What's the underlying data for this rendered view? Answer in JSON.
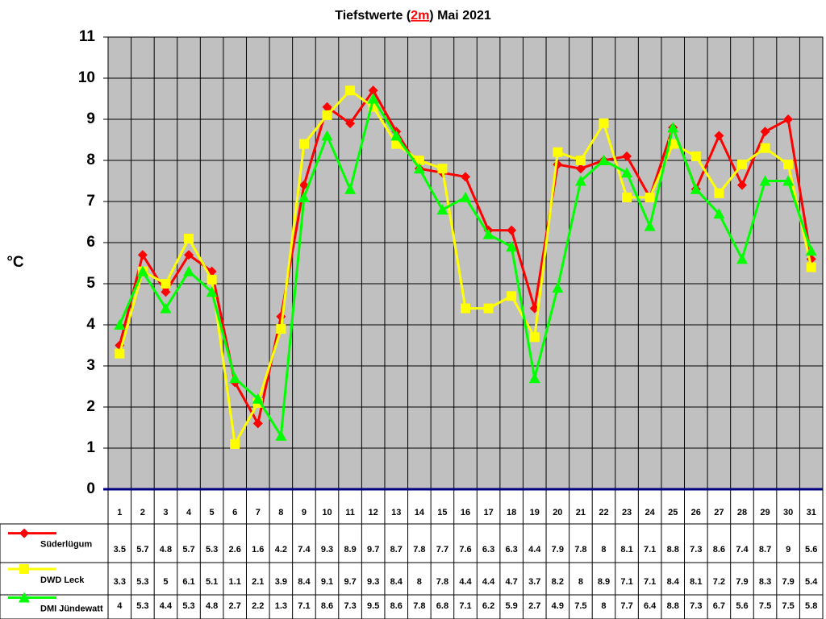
{
  "chart_data": {
    "type": "line",
    "title": [
      "Tiefstwerte (",
      "2m",
      ") Mai 2021"
    ],
    "y_label": "°C",
    "categories": [
      "1",
      "2",
      "3",
      "4",
      "5",
      "6",
      "7",
      "8",
      "9",
      "10",
      "11",
      "12",
      "13",
      "14",
      "15",
      "16",
      "17",
      "18",
      "19",
      "20",
      "21",
      "22",
      "23",
      "24",
      "25",
      "26",
      "27",
      "28",
      "29",
      "30",
      "31"
    ],
    "ylim": [
      0,
      11
    ],
    "yticks": [
      0,
      1,
      2,
      3,
      4,
      5,
      6,
      7,
      8,
      9,
      10,
      11
    ],
    "grid": true,
    "series": [
      {
        "name": "Süderlügum",
        "color": "#ff0000",
        "marker": "diamond",
        "values": [
          3.5,
          5.7,
          4.8,
          5.7,
          5.3,
          2.6,
          1.6,
          4.2,
          7.4,
          9.3,
          8.9,
          9.7,
          8.7,
          7.8,
          7.7,
          7.6,
          6.3,
          6.3,
          4.4,
          7.9,
          7.8,
          8,
          8.1,
          7.1,
          8.8,
          7.3,
          8.6,
          7.4,
          8.7,
          9,
          5.6
        ]
      },
      {
        "name": "DWD Leck",
        "color": "#ffff00",
        "marker": "square",
        "values": [
          3.3,
          5.3,
          5,
          6.1,
          5.1,
          1.1,
          2.1,
          3.9,
          8.4,
          9.1,
          9.7,
          9.3,
          8.4,
          8,
          7.8,
          4.4,
          4.4,
          4.7,
          3.7,
          8.2,
          8,
          8.9,
          7.1,
          7.1,
          8.4,
          8.1,
          7.2,
          7.9,
          8.3,
          7.9,
          5.4
        ]
      },
      {
        "name": "DMI Jündewatt",
        "color": "#00ff00",
        "marker": "triangle",
        "values": [
          4,
          5.3,
          4.4,
          5.3,
          4.8,
          2.7,
          2.2,
          1.3,
          7.1,
          8.6,
          7.3,
          9.5,
          8.6,
          7.8,
          6.8,
          7.1,
          6.2,
          5.9,
          2.7,
          4.9,
          7.5,
          8,
          7.7,
          6.4,
          8.8,
          7.3,
          6.7,
          5.6,
          7.5,
          7.5,
          5.8
        ]
      }
    ]
  }
}
